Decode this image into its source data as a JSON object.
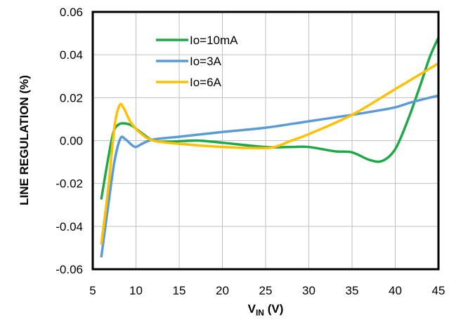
{
  "chart_data": {
    "type": "line",
    "title": "",
    "xlabel": "V",
    "xlabel_sub": "IN",
    "xlabel_suffix": " (V)",
    "ylabel": "LINE REGULATION (%)",
    "xlim": [
      5,
      45
    ],
    "ylim": [
      -0.06,
      0.06
    ],
    "x_ticks": [
      5,
      10,
      15,
      20,
      25,
      30,
      35,
      40,
      45
    ],
    "y_ticks": [
      -0.06,
      -0.04,
      -0.02,
      0.0,
      0.02,
      0.04,
      0.06
    ],
    "x_tick_labels": [
      "5",
      "10",
      "15",
      "20",
      "25",
      "30",
      "35",
      "40",
      "45"
    ],
    "y_tick_labels": [
      "-0.06",
      "-0.04",
      "-0.02",
      "0.00",
      "0.02",
      "0.04",
      "0.06"
    ],
    "grid": true,
    "legend_position": "top-center",
    "series": [
      {
        "name": "Io=10mA",
        "color": "#1fa84a",
        "points": [
          [
            6,
            -0.027
          ],
          [
            6.8,
            -0.008
          ],
          [
            7.4,
            0.004
          ],
          [
            8,
            0.0075
          ],
          [
            8.7,
            0.008
          ],
          [
            9.5,
            0.007
          ],
          [
            10.5,
            0.004
          ],
          [
            12,
            0.0
          ],
          [
            14,
            -0.0005
          ],
          [
            17,
            0.0
          ],
          [
            20,
            -0.001
          ],
          [
            25,
            -0.003
          ],
          [
            28,
            -0.003
          ],
          [
            30,
            -0.003
          ],
          [
            33,
            -0.005
          ],
          [
            35,
            -0.0055
          ],
          [
            37,
            -0.009
          ],
          [
            38.5,
            -0.0095
          ],
          [
            40,
            -0.004
          ],
          [
            41.5,
            0.01
          ],
          [
            43,
            0.027
          ],
          [
            44,
            0.039
          ],
          [
            45,
            0.048
          ]
        ]
      },
      {
        "name": "Io=3A",
        "color": "#5b9bd5",
        "points": [
          [
            6,
            -0.054
          ],
          [
            6.8,
            -0.03
          ],
          [
            7.5,
            -0.01
          ],
          [
            8.2,
            0.001
          ],
          [
            8.8,
            0.0005
          ],
          [
            9.5,
            -0.002
          ],
          [
            10,
            -0.003
          ],
          [
            10.7,
            -0.0015
          ],
          [
            12,
            0.0005
          ],
          [
            15,
            0.0018
          ],
          [
            20,
            0.004
          ],
          [
            25,
            0.006
          ],
          [
            30,
            0.009
          ],
          [
            35,
            0.012
          ],
          [
            38,
            0.014
          ],
          [
            40,
            0.0155
          ],
          [
            42,
            0.018
          ],
          [
            45,
            0.021
          ]
        ]
      },
      {
        "name": "Io=6A",
        "color": "#ffc000",
        "points": [
          [
            6,
            -0.048
          ],
          [
            6.8,
            -0.022
          ],
          [
            7.5,
            0.006
          ],
          [
            8.1,
            0.0165
          ],
          [
            8.6,
            0.015
          ],
          [
            9.4,
            0.0085
          ],
          [
            10.5,
            0.0035
          ],
          [
            12,
            0.0
          ],
          [
            15,
            -0.0015
          ],
          [
            20,
            -0.003
          ],
          [
            24,
            -0.0035
          ],
          [
            26,
            -0.003
          ],
          [
            28,
            0.0
          ],
          [
            30,
            0.003
          ],
          [
            35,
            0.012
          ],
          [
            40,
            0.024
          ],
          [
            45,
            0.036
          ]
        ]
      }
    ]
  }
}
